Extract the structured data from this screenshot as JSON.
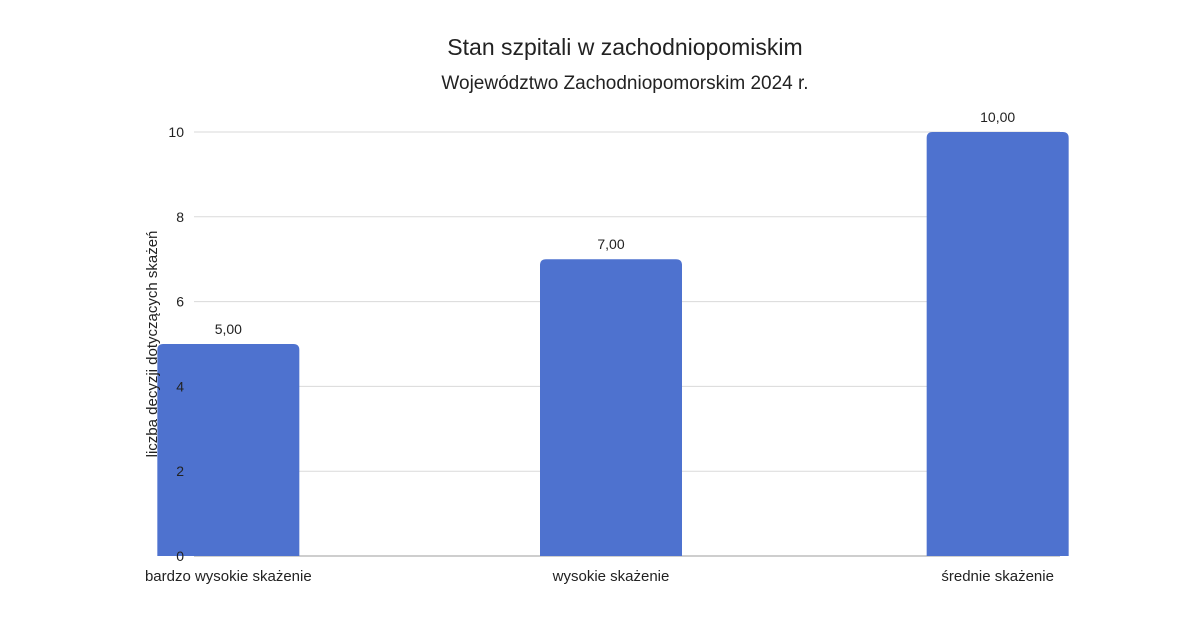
{
  "chart_data": {
    "type": "bar",
    "title": "Stan szpitali w zachodniopomiskim",
    "subtitle": "Województwo Zachodniopomorskim 2024 r.",
    "xlabel": "",
    "ylabel": "liczba decyzji dotyczących skażeń",
    "categories": [
      "bardzo wysokie skażenie",
      "wysokie skażenie",
      "średnie skażenie"
    ],
    "values": [
      5,
      7,
      10
    ],
    "data_labels": [
      "5,00",
      "7,00",
      "10,00"
    ],
    "ylim": [
      0,
      10
    ],
    "yticks": [
      0,
      2,
      4,
      6,
      8,
      10
    ],
    "grid": true,
    "legend": "none",
    "bar_color": "#4e72cf",
    "grid_color": "#dadada"
  }
}
